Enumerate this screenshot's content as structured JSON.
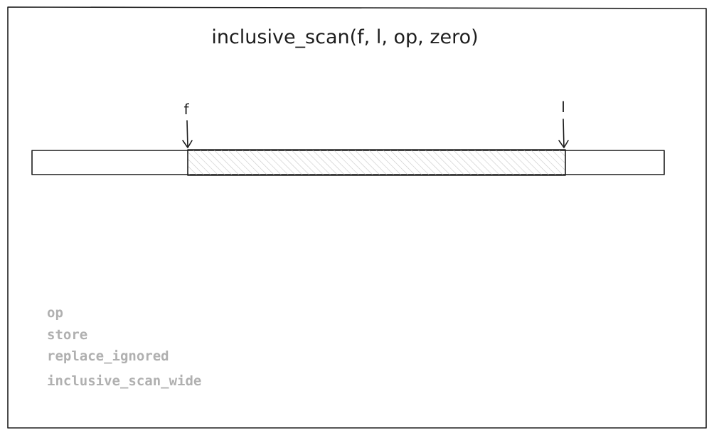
{
  "title": "inclusive_scan(f, l, op, zero)",
  "pointers": {
    "first_label": "f",
    "last_label": "l"
  },
  "legend": {
    "items": [
      "op",
      "store",
      "replace_ignored",
      "inclusive_scan_wide"
    ]
  },
  "colors": {
    "ink": "#1e1e1e",
    "hatch": "#c8c8c8",
    "legend_text": "#b0b0b0",
    "background": "#ffffff"
  }
}
